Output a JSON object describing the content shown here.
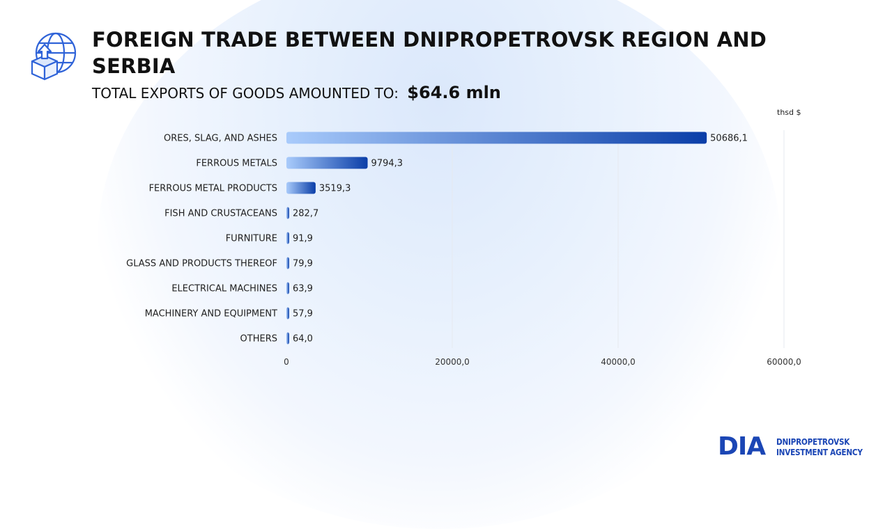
{
  "header": {
    "title": "FOREIGN TRADE BETWEEN DNIPROPETROVSK REGION AND SERBIA",
    "subtitle_label": "TOTAL EXPORTS OF GOODS AMOUNTED TO:",
    "subtitle_value": "$64.6 mln",
    "icon": "globe-export-box-icon"
  },
  "chart_data": {
    "type": "bar",
    "orientation": "horizontal",
    "unit": "thsd $",
    "categories": [
      "ORES, SLAG, AND ASHES",
      "FERROUS METALS",
      "FERROUS METAL PRODUCTS",
      "FISH AND CRUSTACEANS",
      "FURNITURE",
      "GLASS AND PRODUCTS THEREOF",
      "ELECTRICAL MACHINES",
      "MACHINERY AND EQUIPMENT",
      "OTHERS"
    ],
    "values": [
      50686.1,
      9794.3,
      3519.3,
      282.7,
      91.9,
      79.9,
      63.9,
      57.9,
      64.0
    ],
    "value_labels": [
      "50686,1",
      "9794,3",
      "3519,3",
      "282,7",
      "91,9",
      "79,9",
      "63,9",
      "57,9",
      "64,0"
    ],
    "xlim": [
      0,
      60000
    ],
    "x_ticks": [
      0,
      20000,
      40000,
      60000
    ],
    "x_tick_labels": [
      "0",
      "20000,0",
      "40000,0",
      "60000,0"
    ],
    "grid": "vertical",
    "colors": {
      "bar_start": "#a9cbfb",
      "bar_end": "#0a3ea8"
    }
  },
  "logo": {
    "mark": "DIA",
    "line1": "DNIPROPETROVSK",
    "line2": "INVESTMENT AGENCY",
    "color": "#1b46b5"
  }
}
